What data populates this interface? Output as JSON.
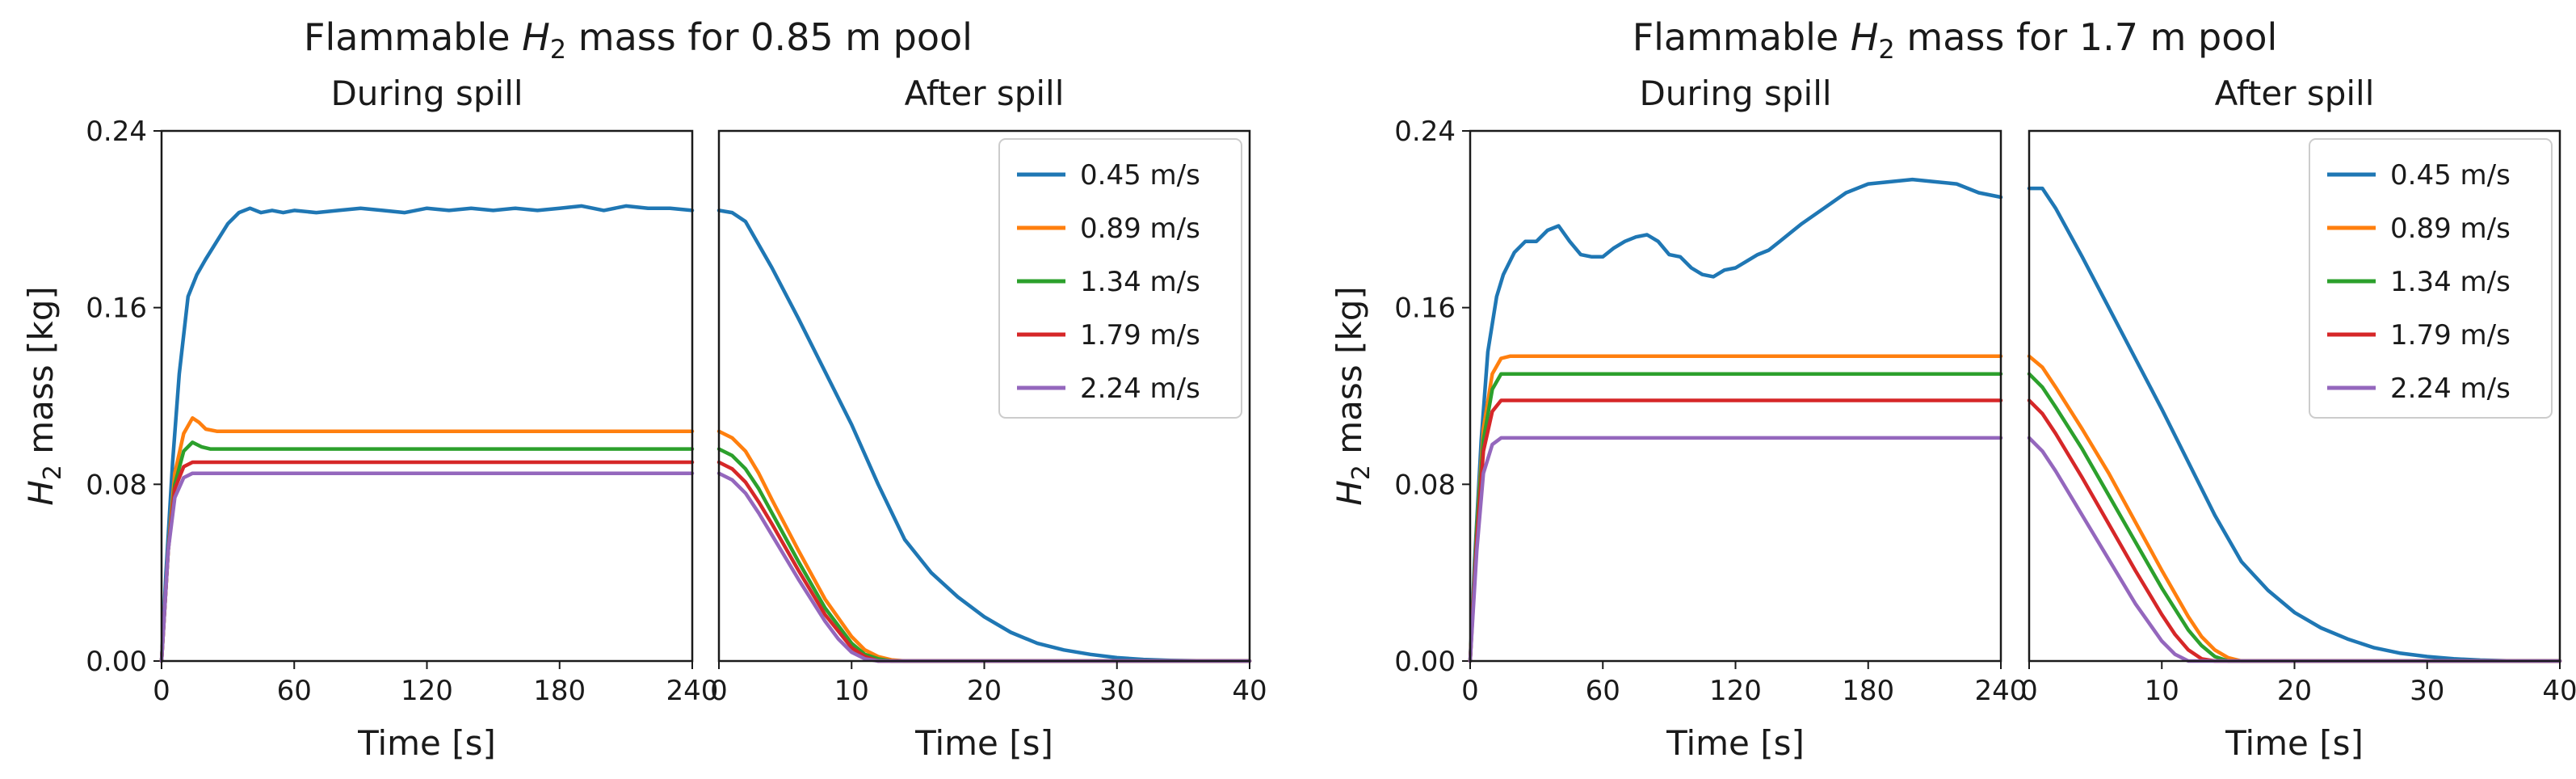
{
  "chart_data": [
    {
      "type": "line",
      "title_main": "Flammable ",
      "title_var": "H",
      "title_sub": "2",
      "title_rest": " mass for 0.85 m pool",
      "ylabel_var": "H",
      "ylabel_sub": "2",
      "ylabel_rest": " mass [kg]",
      "yticks": [
        "0.00",
        "0.08",
        "0.16",
        "0.24"
      ],
      "ylim": [
        0,
        0.24
      ],
      "panels": [
        {
          "subtitle": "During spill",
          "xlabel": "Time [s]",
          "xlim": [
            0,
            240
          ],
          "xticks": [
            "0",
            "60",
            "120",
            "180",
            "240"
          ],
          "series": [
            {
              "name": "0.45 m/s",
              "x": [
                0,
                2,
                5,
                8,
                12,
                16,
                20,
                25,
                30,
                35,
                40,
                45,
                50,
                55,
                60,
                70,
                80,
                90,
                100,
                110,
                120,
                130,
                140,
                150,
                160,
                170,
                180,
                190,
                200,
                210,
                220,
                230,
                240
              ],
              "y": [
                0,
                0.04,
                0.09,
                0.13,
                0.165,
                0.175,
                0.182,
                0.19,
                0.198,
                0.203,
                0.205,
                0.203,
                0.204,
                0.203,
                0.204,
                0.203,
                0.204,
                0.205,
                0.204,
                0.203,
                0.205,
                0.204,
                0.205,
                0.204,
                0.205,
                0.204,
                0.205,
                0.206,
                0.204,
                0.206,
                0.205,
                0.205,
                0.204
              ]
            },
            {
              "name": "0.89 m/s",
              "x": [
                0,
                3,
                6,
                10,
                14,
                17,
                20,
                25,
                30,
                60,
                120,
                180,
                240
              ],
              "y": [
                0,
                0.05,
                0.085,
                0.103,
                0.11,
                0.108,
                0.105,
                0.104,
                0.104,
                0.104,
                0.104,
                0.104,
                0.104
              ]
            },
            {
              "name": "1.34 m/s",
              "x": [
                0,
                3,
                6,
                10,
                14,
                18,
                22,
                30,
                60,
                120,
                180,
                240
              ],
              "y": [
                0,
                0.05,
                0.08,
                0.095,
                0.099,
                0.097,
                0.096,
                0.096,
                0.096,
                0.096,
                0.096,
                0.096
              ]
            },
            {
              "name": "1.79 m/s",
              "x": [
                0,
                3,
                6,
                10,
                14,
                18,
                30,
                60,
                120,
                180,
                240
              ],
              "y": [
                0,
                0.05,
                0.078,
                0.088,
                0.09,
                0.09,
                0.09,
                0.09,
                0.09,
                0.09,
                0.09
              ]
            },
            {
              "name": "2.24 m/s",
              "x": [
                0,
                3,
                6,
                10,
                14,
                18,
                30,
                60,
                120,
                180,
                240
              ],
              "y": [
                0,
                0.05,
                0.074,
                0.083,
                0.085,
                0.085,
                0.085,
                0.085,
                0.085,
                0.085,
                0.085
              ]
            }
          ]
        },
        {
          "subtitle": "After spill",
          "xlabel": "Time [s]",
          "xlim": [
            0,
            40
          ],
          "xticks": [
            "0",
            "10",
            "20",
            "30",
            "40"
          ],
          "legend": "top-right",
          "series": [
            {
              "name": "0.45 m/s",
              "x": [
                0,
                1,
                2,
                4,
                6,
                8,
                10,
                12,
                14,
                16,
                18,
                20,
                22,
                24,
                26,
                28,
                30,
                32,
                34,
                36,
                40
              ],
              "y": [
                0.204,
                0.203,
                0.199,
                0.178,
                0.155,
                0.131,
                0.107,
                0.08,
                0.055,
                0.04,
                0.029,
                0.02,
                0.013,
                0.008,
                0.005,
                0.003,
                0.0015,
                0.0007,
                0.0003,
                0.0001,
                0
              ]
            },
            {
              "name": "0.89 m/s",
              "x": [
                0,
                1,
                2,
                3,
                4,
                6,
                8,
                10,
                11,
                12,
                13,
                14,
                40
              ],
              "y": [
                0.104,
                0.101,
                0.095,
                0.085,
                0.073,
                0.05,
                0.028,
                0.011,
                0.005,
                0.002,
                0.0005,
                0,
                0
              ]
            },
            {
              "name": "1.34 m/s",
              "x": [
                0,
                1,
                2,
                3,
                4,
                6,
                8,
                10,
                11,
                12,
                13,
                40
              ],
              "y": [
                0.096,
                0.093,
                0.087,
                0.078,
                0.067,
                0.045,
                0.024,
                0.008,
                0.003,
                0.001,
                0,
                0
              ]
            },
            {
              "name": "1.79 m/s",
              "x": [
                0,
                1,
                2,
                3,
                4,
                6,
                8,
                10,
                11,
                12,
                40
              ],
              "y": [
                0.09,
                0.087,
                0.081,
                0.072,
                0.062,
                0.041,
                0.021,
                0.006,
                0.002,
                0,
                0
              ]
            },
            {
              "name": "2.24 m/s",
              "x": [
                0,
                1,
                2,
                3,
                4,
                6,
                8,
                9,
                10,
                11,
                12,
                40
              ],
              "y": [
                0.085,
                0.082,
                0.076,
                0.067,
                0.057,
                0.037,
                0.018,
                0.01,
                0.004,
                0.001,
                0,
                0
              ]
            }
          ]
        }
      ]
    },
    {
      "type": "line",
      "title_main": "Flammable ",
      "title_var": "H",
      "title_sub": "2",
      "title_rest": " mass for 1.7 m pool",
      "ylabel_var": "H",
      "ylabel_sub": "2",
      "ylabel_rest": " mass [kg]",
      "yticks": [
        "0.00",
        "0.08",
        "0.16",
        "0.24"
      ],
      "ylim": [
        0,
        0.24
      ],
      "panels": [
        {
          "subtitle": "During spill",
          "xlabel": "Time [s]",
          "xlim": [
            0,
            240
          ],
          "xticks": [
            "0",
            "60",
            "120",
            "180",
            "240"
          ],
          "series": [
            {
              "name": "0.45 m/s",
              "x": [
                0,
                2,
                5,
                8,
                12,
                15,
                20,
                25,
                30,
                35,
                40,
                45,
                50,
                55,
                60,
                65,
                70,
                75,
                80,
                85,
                90,
                95,
                100,
                105,
                110,
                115,
                120,
                125,
                130,
                135,
                140,
                145,
                150,
                160,
                170,
                180,
                190,
                200,
                210,
                220,
                230,
                240
              ],
              "y": [
                0,
                0.045,
                0.1,
                0.14,
                0.165,
                0.175,
                0.185,
                0.19,
                0.19,
                0.195,
                0.197,
                0.19,
                0.184,
                0.183,
                0.183,
                0.187,
                0.19,
                0.192,
                0.193,
                0.19,
                0.184,
                0.183,
                0.178,
                0.175,
                0.174,
                0.177,
                0.178,
                0.181,
                0.184,
                0.186,
                0.19,
                0.194,
                0.198,
                0.205,
                0.212,
                0.216,
                0.217,
                0.218,
                0.217,
                0.216,
                0.212,
                0.21
              ]
            },
            {
              "name": "0.89 m/s",
              "x": [
                0,
                3,
                6,
                10,
                14,
                18,
                30,
                60,
                120,
                180,
                240
              ],
              "y": [
                0,
                0.06,
                0.105,
                0.13,
                0.137,
                0.138,
                0.138,
                0.138,
                0.138,
                0.138,
                0.138
              ]
            },
            {
              "name": "1.34 m/s",
              "x": [
                0,
                3,
                6,
                10,
                14,
                18,
                30,
                60,
                120,
                180,
                240
              ],
              "y": [
                0,
                0.06,
                0.1,
                0.123,
                0.13,
                0.13,
                0.13,
                0.13,
                0.13,
                0.13,
                0.13
              ]
            },
            {
              "name": "1.79 m/s",
              "x": [
                0,
                3,
                6,
                10,
                14,
                18,
                30,
                60,
                120,
                180,
                240
              ],
              "y": [
                0,
                0.055,
                0.095,
                0.113,
                0.118,
                0.118,
                0.118,
                0.118,
                0.118,
                0.118,
                0.118
              ]
            },
            {
              "name": "2.24 m/s",
              "x": [
                0,
                3,
                6,
                10,
                14,
                18,
                30,
                60,
                120,
                180,
                240
              ],
              "y": [
                0,
                0.05,
                0.085,
                0.098,
                0.101,
                0.101,
                0.101,
                0.101,
                0.101,
                0.101,
                0.101
              ]
            }
          ]
        },
        {
          "subtitle": "After spill",
          "xlabel": "Time [s]",
          "xlim": [
            0,
            40
          ],
          "xticks": [
            "0",
            "10",
            "20",
            "30",
            "40"
          ],
          "legend": "top-right",
          "series": [
            {
              "name": "0.45 m/s",
              "x": [
                0,
                1,
                2,
                4,
                6,
                8,
                10,
                12,
                14,
                16,
                18,
                20,
                22,
                24,
                26,
                28,
                30,
                32,
                34,
                36,
                40
              ],
              "y": [
                0.214,
                0.214,
                0.205,
                0.183,
                0.16,
                0.137,
                0.114,
                0.09,
                0.066,
                0.045,
                0.032,
                0.022,
                0.015,
                0.01,
                0.006,
                0.0035,
                0.002,
                0.001,
                0.0004,
                0.0001,
                0
              ]
            },
            {
              "name": "0.89 m/s",
              "x": [
                0,
                1,
                2,
                4,
                6,
                8,
                10,
                12,
                13,
                14,
                15,
                16,
                40
              ],
              "y": [
                0.138,
                0.133,
                0.124,
                0.105,
                0.085,
                0.063,
                0.041,
                0.02,
                0.011,
                0.005,
                0.0015,
                0,
                0
              ]
            },
            {
              "name": "1.34 m/s",
              "x": [
                0,
                1,
                2,
                4,
                6,
                8,
                10,
                12,
                13,
                14,
                15,
                40
              ],
              "y": [
                0.13,
                0.124,
                0.115,
                0.096,
                0.075,
                0.054,
                0.033,
                0.014,
                0.007,
                0.002,
                0,
                0
              ]
            },
            {
              "name": "1.79 m/s",
              "x": [
                0,
                1,
                2,
                4,
                6,
                8,
                10,
                11,
                12,
                13,
                14,
                40
              ],
              "y": [
                0.118,
                0.112,
                0.103,
                0.083,
                0.062,
                0.041,
                0.021,
                0.012,
                0.005,
                0.001,
                0,
                0
              ]
            },
            {
              "name": "2.24 m/s",
              "x": [
                0,
                1,
                2,
                4,
                6,
                8,
                10,
                11,
                12,
                40
              ],
              "y": [
                0.101,
                0.095,
                0.086,
                0.066,
                0.046,
                0.026,
                0.009,
                0.003,
                0,
                0
              ]
            }
          ]
        }
      ]
    }
  ],
  "colors": {
    "0.45 m/s": "#1f77b4",
    "0.89 m/s": "#ff7f0e",
    "1.34 m/s": "#2ca02c",
    "1.79 m/s": "#d62728",
    "2.24 m/s": "#9467bd"
  }
}
